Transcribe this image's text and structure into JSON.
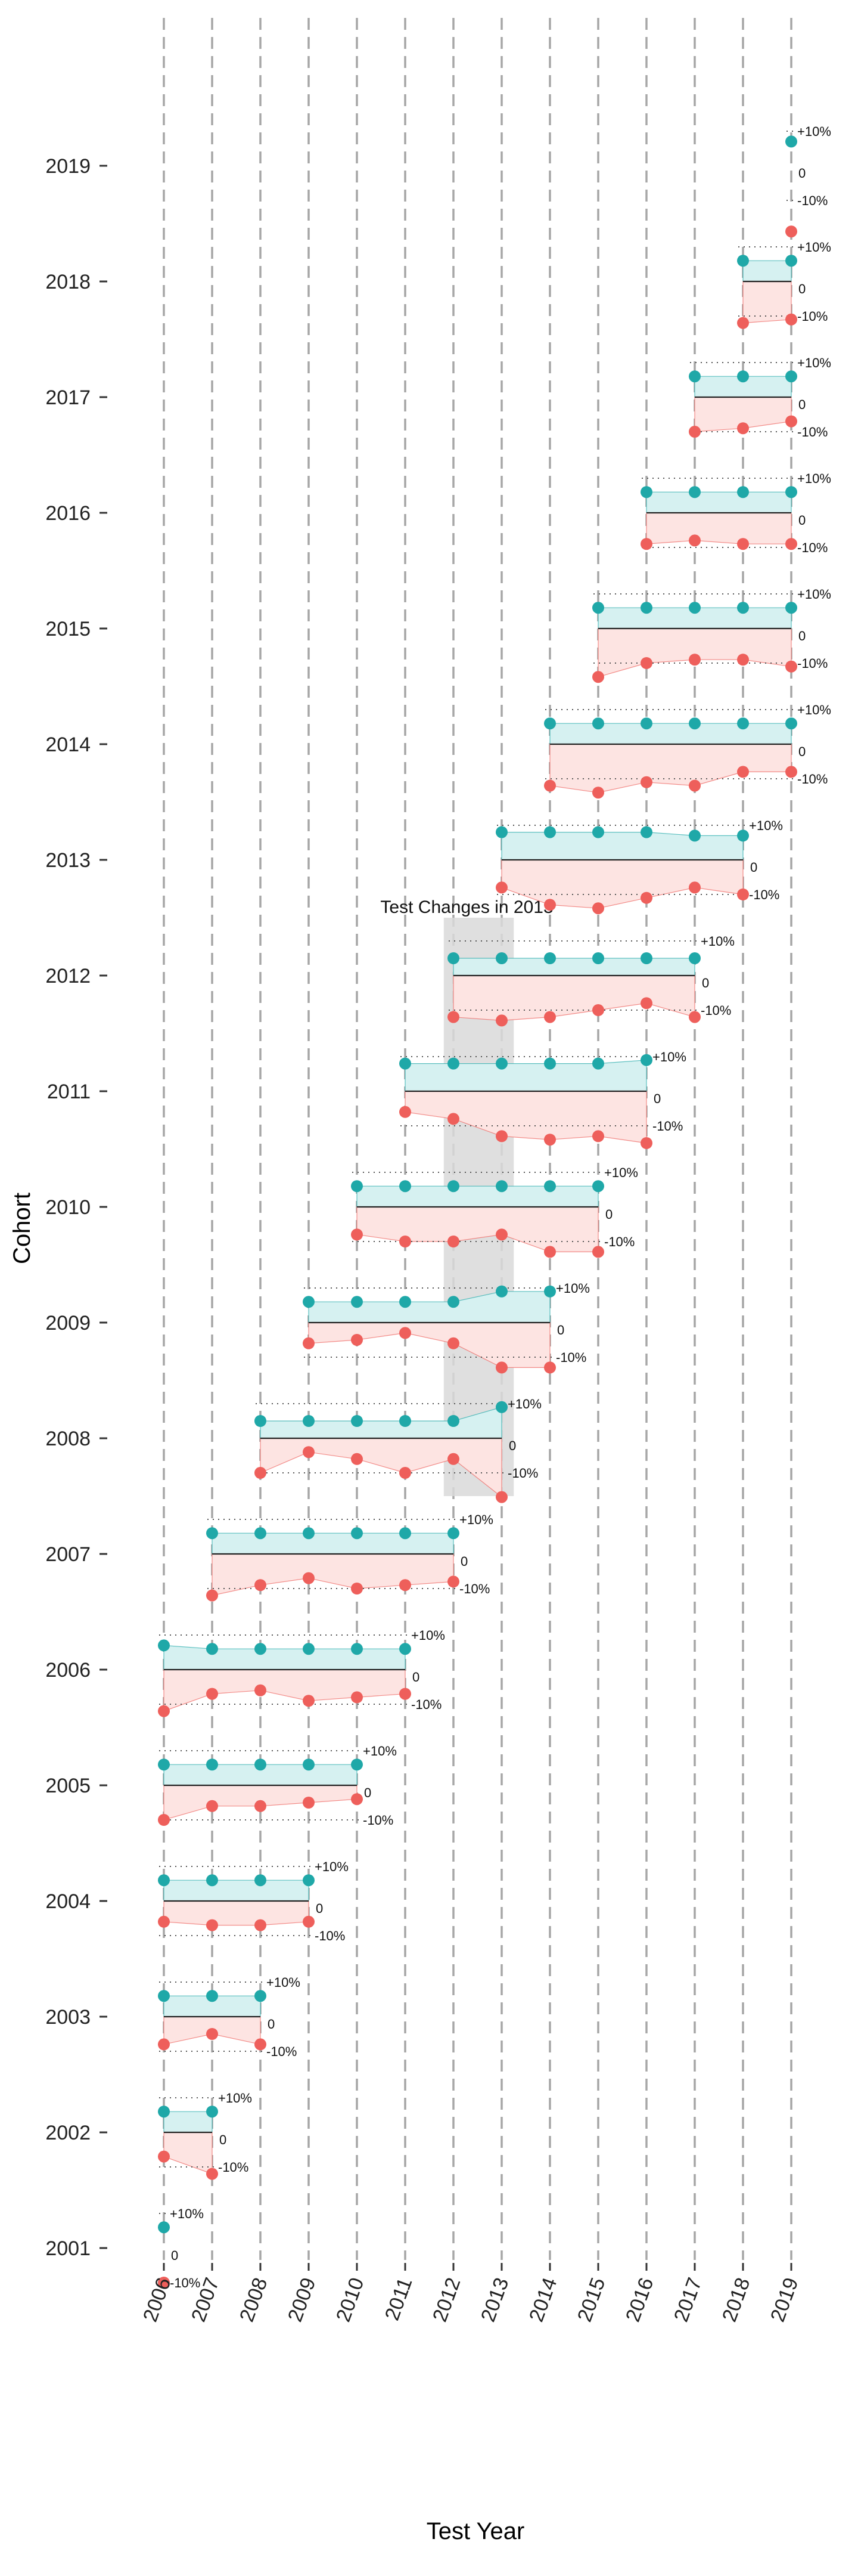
{
  "chart_data": {
    "type": "scatter",
    "title": "",
    "xlabel": "Test Year",
    "ylabel": "Cohort",
    "x_ticks": [
      "2006",
      "2007",
      "2008",
      "2009",
      "2010",
      "2011",
      "2012",
      "2013",
      "2014",
      "2015",
      "2016",
      "2017",
      "2018",
      "2019"
    ],
    "y_ticks": [
      "2001",
      "2002",
      "2003",
      "2004",
      "2005",
      "2006",
      "2007",
      "2008",
      "2009",
      "2010",
      "2011",
      "2012",
      "2013",
      "2014",
      "2015",
      "2016",
      "2017",
      "2018",
      "2019"
    ],
    "grid": "vertical dashed lines at each test year",
    "reference_labels": {
      "upper": "+10%",
      "zero": "0",
      "lower": "-10%"
    },
    "colors": {
      "above": "#1fa8a8",
      "below": "#ee5f5b",
      "band_above": "#d6f1f1",
      "band_below": "#fde4e2",
      "highlight": "#d9d9d9"
    },
    "annotation": {
      "text": "Test Changes in 2013",
      "x_start": 2011.8,
      "x_end": 2013.25,
      "cohort_top": 2012.5,
      "cohort_bottom": 2007.5
    },
    "series": [
      {
        "cohort": 2001,
        "years": [
          2006
        ],
        "above": [
          6
        ],
        "below": [
          -10
        ]
      },
      {
        "cohort": 2002,
        "years": [
          2006,
          2007
        ],
        "above": [
          6,
          6
        ],
        "below": [
          -7,
          -12
        ]
      },
      {
        "cohort": 2003,
        "years": [
          2006,
          2007,
          2008
        ],
        "above": [
          6,
          6,
          6
        ],
        "below": [
          -8,
          -5,
          -8
        ]
      },
      {
        "cohort": 2004,
        "years": [
          2006,
          2007,
          2008,
          2009
        ],
        "above": [
          6,
          6,
          6,
          6
        ],
        "below": [
          -6,
          -7,
          -7,
          -6
        ]
      },
      {
        "cohort": 2005,
        "years": [
          2006,
          2007,
          2008,
          2009,
          2010
        ],
        "above": [
          6,
          6,
          6,
          6,
          6
        ],
        "below": [
          -10,
          -6,
          -6,
          -5,
          -4
        ]
      },
      {
        "cohort": 2006,
        "years": [
          2006,
          2007,
          2008,
          2009,
          2010,
          2011
        ],
        "above": [
          7,
          6,
          6,
          6,
          6,
          6
        ],
        "below": [
          -12,
          -7,
          -6,
          -9,
          -8,
          -7
        ]
      },
      {
        "cohort": 2007,
        "years": [
          2007,
          2008,
          2009,
          2010,
          2011,
          2012
        ],
        "above": [
          6,
          6,
          6,
          6,
          6,
          6
        ],
        "below": [
          -12,
          -9,
          -7,
          -10,
          -9,
          -8
        ]
      },
      {
        "cohort": 2008,
        "years": [
          2008,
          2009,
          2010,
          2011,
          2012,
          2013
        ],
        "above": [
          5,
          5,
          5,
          5,
          5,
          9
        ],
        "below": [
          -10,
          -4,
          -6,
          -10,
          -6,
          -17
        ]
      },
      {
        "cohort": 2009,
        "years": [
          2009,
          2010,
          2011,
          2012,
          2013,
          2014
        ],
        "above": [
          6,
          6,
          6,
          6,
          9,
          9
        ],
        "below": [
          -6,
          -5,
          -3,
          -6,
          -13,
          -13
        ]
      },
      {
        "cohort": 2010,
        "years": [
          2010,
          2011,
          2012,
          2013,
          2014,
          2015
        ],
        "above": [
          6,
          6,
          6,
          6,
          6,
          6
        ],
        "below": [
          -8,
          -10,
          -10,
          -8,
          -13,
          -13
        ]
      },
      {
        "cohort": 2011,
        "years": [
          2011,
          2012,
          2013,
          2014,
          2015,
          2016
        ],
        "above": [
          8,
          8,
          8,
          8,
          8,
          9
        ],
        "below": [
          -6,
          -8,
          -13,
          -14,
          -13,
          -15
        ]
      },
      {
        "cohort": 2012,
        "years": [
          2012,
          2013,
          2014,
          2015,
          2016,
          2017
        ],
        "above": [
          5,
          5,
          5,
          5,
          5,
          5
        ],
        "below": [
          -12,
          -13,
          -12,
          -10,
          -8,
          -12
        ]
      },
      {
        "cohort": 2013,
        "years": [
          2013,
          2014,
          2015,
          2016,
          2017,
          2018
        ],
        "above": [
          8,
          8,
          8,
          8,
          7,
          7
        ],
        "below": [
          -8,
          -13,
          -14,
          -11,
          -8,
          -10
        ]
      },
      {
        "cohort": 2014,
        "years": [
          2014,
          2015,
          2016,
          2017,
          2018,
          2019
        ],
        "above": [
          6,
          6,
          6,
          6,
          6,
          6
        ],
        "below": [
          -12,
          -14,
          -11,
          -12,
          -8,
          -8
        ]
      },
      {
        "cohort": 2015,
        "years": [
          2015,
          2016,
          2017,
          2018,
          2019
        ],
        "above": [
          6,
          6,
          6,
          6,
          6
        ],
        "below": [
          -14,
          -10,
          -9,
          -9,
          -11
        ]
      },
      {
        "cohort": 2016,
        "years": [
          2016,
          2017,
          2018,
          2019
        ],
        "above": [
          6,
          6,
          6,
          6
        ],
        "below": [
          -9,
          -8,
          -9,
          -9
        ]
      },
      {
        "cohort": 2017,
        "years": [
          2017,
          2018,
          2019
        ],
        "above": [
          6,
          6,
          6
        ],
        "below": [
          -10,
          -9,
          -7
        ]
      },
      {
        "cohort": 2018,
        "years": [
          2018,
          2019
        ],
        "above": [
          6,
          6
        ],
        "below": [
          -12,
          -11
        ]
      },
      {
        "cohort": 2019,
        "years": [
          2019
        ],
        "above": [
          7
        ],
        "below": [
          -19
        ]
      }
    ]
  }
}
